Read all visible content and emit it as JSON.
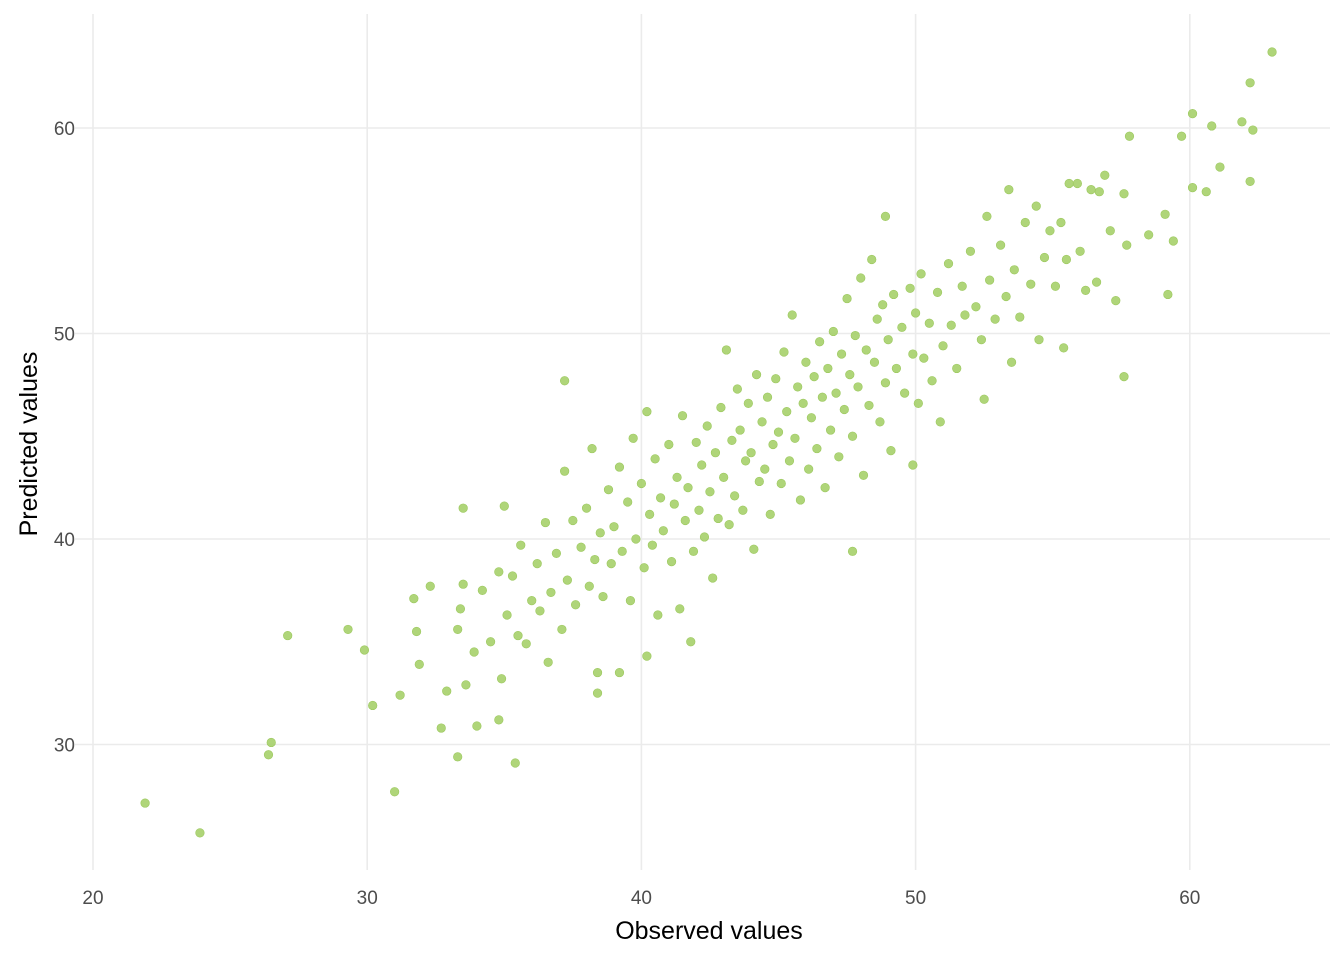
{
  "chart_data": {
    "type": "scatter",
    "title": "",
    "xlabel": "Observed values",
    "ylabel": "Predicted values",
    "xlim": [
      19.9,
      65
    ],
    "ylim": [
      24.3,
      65.5
    ],
    "x_ticks": [
      20,
      30,
      40,
      50,
      60
    ],
    "y_ticks": [
      30,
      40,
      50,
      60
    ],
    "x_tick_labels": [
      "20",
      "30",
      "40",
      "50",
      "60"
    ],
    "y_tick_labels": [
      "30",
      "40",
      "50",
      "60"
    ],
    "grid": true,
    "point_color": "#a6d06a",
    "points": [
      [
        21.9,
        27.15
      ],
      [
        23.9,
        25.7
      ],
      [
        26.4,
        29.5
      ],
      [
        26.5,
        30.1
      ],
      [
        27.1,
        35.3
      ],
      [
        29.3,
        35.6
      ],
      [
        29.9,
        34.6
      ],
      [
        30.2,
        31.9
      ],
      [
        31.0,
        27.7
      ],
      [
        31.2,
        32.4
      ],
      [
        31.7,
        37.1
      ],
      [
        31.8,
        35.5
      ],
      [
        31.9,
        33.9
      ],
      [
        32.3,
        37.7
      ],
      [
        32.7,
        30.8
      ],
      [
        32.9,
        32.6
      ],
      [
        33.3,
        35.6
      ],
      [
        33.3,
        29.4
      ],
      [
        33.5,
        41.5
      ],
      [
        33.5,
        37.8
      ],
      [
        33.6,
        32.9
      ],
      [
        34.0,
        30.9
      ],
      [
        34.8,
        31.2
      ],
      [
        35.4,
        29.1
      ],
      [
        35.0,
        41.6
      ],
      [
        37.2,
        47.7
      ],
      [
        38.4,
        32.5
      ],
      [
        38.4,
        33.5
      ],
      [
        39.2,
        33.5
      ],
      [
        40.2,
        34.3
      ],
      [
        41.8,
        35.0
      ],
      [
        47.7,
        39.4
      ],
      [
        48.9,
        55.7
      ],
      [
        57.6,
        47.9
      ],
      [
        59.2,
        51.9
      ],
      [
        57.8,
        59.6
      ],
      [
        59.7,
        59.6
      ],
      [
        60.1,
        60.7
      ],
      [
        60.8,
        60.1
      ],
      [
        62.2,
        62.2
      ],
      [
        63.0,
        63.7
      ],
      [
        61.9,
        60.3
      ],
      [
        62.3,
        59.9
      ],
      [
        62.2,
        57.4
      ],
      [
        61.1,
        58.1
      ],
      [
        60.6,
        56.9
      ],
      [
        60.1,
        57.1
      ],
      [
        59.4,
        54.5
      ],
      [
        59.1,
        55.8
      ],
      [
        58.5,
        54.8
      ],
      [
        55.4,
        49.3
      ],
      [
        53.5,
        48.6
      ],
      [
        52.5,
        46.8
      ],
      [
        50.9,
        45.7
      ],
      [
        49.9,
        43.6
      ],
      [
        33.4,
        36.6
      ],
      [
        33.9,
        34.5
      ],
      [
        34.2,
        37.5
      ],
      [
        34.5,
        35.0
      ],
      [
        34.8,
        38.4
      ],
      [
        34.9,
        33.2
      ],
      [
        35.1,
        36.3
      ],
      [
        35.3,
        38.2
      ],
      [
        35.5,
        35.3
      ],
      [
        35.6,
        39.7
      ],
      [
        35.8,
        34.9
      ],
      [
        36.0,
        37.0
      ],
      [
        36.2,
        38.8
      ],
      [
        36.3,
        36.5
      ],
      [
        36.5,
        40.8
      ],
      [
        36.6,
        34.0
      ],
      [
        36.7,
        37.4
      ],
      [
        36.9,
        39.3
      ],
      [
        37.1,
        35.6
      ],
      [
        37.2,
        43.3
      ],
      [
        37.3,
        38.0
      ],
      [
        37.5,
        40.9
      ],
      [
        37.6,
        36.8
      ],
      [
        37.8,
        39.6
      ],
      [
        38.0,
        41.5
      ],
      [
        38.1,
        37.7
      ],
      [
        38.2,
        44.4
      ],
      [
        38.3,
        39.0
      ],
      [
        38.5,
        40.3
      ],
      [
        38.6,
        37.2
      ],
      [
        38.8,
        42.4
      ],
      [
        38.9,
        38.8
      ],
      [
        39.0,
        40.6
      ],
      [
        39.2,
        43.5
      ],
      [
        39.3,
        39.4
      ],
      [
        39.5,
        41.8
      ],
      [
        39.6,
        37.0
      ],
      [
        39.7,
        44.9
      ],
      [
        39.8,
        40.0
      ],
      [
        40.0,
        42.7
      ],
      [
        40.1,
        38.6
      ],
      [
        40.2,
        46.2
      ],
      [
        40.3,
        41.2
      ],
      [
        40.4,
        39.7
      ],
      [
        40.5,
        43.9
      ],
      [
        40.6,
        36.3
      ],
      [
        40.7,
        42.0
      ],
      [
        40.8,
        40.4
      ],
      [
        41.0,
        44.6
      ],
      [
        41.1,
        38.9
      ],
      [
        41.2,
        41.7
      ],
      [
        41.3,
        43.0
      ],
      [
        41.4,
        36.6
      ],
      [
        41.5,
        46.0
      ],
      [
        41.6,
        40.9
      ],
      [
        41.7,
        42.5
      ],
      [
        41.9,
        39.4
      ],
      [
        42.0,
        44.7
      ],
      [
        42.1,
        41.4
      ],
      [
        42.2,
        43.6
      ],
      [
        42.3,
        40.1
      ],
      [
        42.4,
        45.5
      ],
      [
        42.5,
        42.3
      ],
      [
        42.6,
        38.1
      ],
      [
        42.7,
        44.2
      ],
      [
        42.8,
        41.0
      ],
      [
        42.9,
        46.4
      ],
      [
        43.0,
        43.0
      ],
      [
        43.1,
        49.2
      ],
      [
        43.2,
        40.7
      ],
      [
        43.3,
        44.8
      ],
      [
        43.4,
        42.1
      ],
      [
        43.5,
        47.3
      ],
      [
        43.6,
        45.3
      ],
      [
        43.7,
        41.4
      ],
      [
        43.8,
        43.8
      ],
      [
        43.9,
        46.6
      ],
      [
        44.0,
        44.2
      ],
      [
        44.1,
        39.5
      ],
      [
        44.2,
        48.0
      ],
      [
        44.3,
        42.8
      ],
      [
        44.4,
        45.7
      ],
      [
        44.5,
        43.4
      ],
      [
        44.6,
        46.9
      ],
      [
        44.7,
        41.2
      ],
      [
        44.8,
        44.6
      ],
      [
        44.9,
        47.8
      ],
      [
        45.0,
        45.2
      ],
      [
        45.1,
        42.7
      ],
      [
        45.2,
        49.1
      ],
      [
        45.3,
        46.2
      ],
      [
        45.4,
        43.8
      ],
      [
        45.5,
        50.9
      ],
      [
        45.6,
        44.9
      ],
      [
        45.7,
        47.4
      ],
      [
        45.8,
        41.9
      ],
      [
        45.9,
        46.6
      ],
      [
        46.0,
        48.6
      ],
      [
        46.1,
        43.4
      ],
      [
        46.2,
        45.9
      ],
      [
        46.3,
        47.9
      ],
      [
        46.4,
        44.4
      ],
      [
        46.5,
        49.6
      ],
      [
        46.6,
        46.9
      ],
      [
        46.7,
        42.5
      ],
      [
        46.8,
        48.3
      ],
      [
        46.9,
        45.3
      ],
      [
        47.0,
        50.1
      ],
      [
        47.1,
        47.1
      ],
      [
        47.2,
        44.0
      ],
      [
        47.3,
        49.0
      ],
      [
        47.4,
        46.3
      ],
      [
        47.5,
        51.7
      ],
      [
        47.6,
        48.0
      ],
      [
        47.7,
        45.0
      ],
      [
        47.8,
        49.9
      ],
      [
        47.9,
        47.4
      ],
      [
        48.0,
        52.7
      ],
      [
        48.1,
        43.1
      ],
      [
        48.2,
        49.2
      ],
      [
        48.3,
        46.5
      ],
      [
        48.4,
        53.6
      ],
      [
        48.5,
        48.6
      ],
      [
        48.6,
        50.7
      ],
      [
        48.7,
        45.7
      ],
      [
        48.8,
        51.4
      ],
      [
        48.9,
        47.6
      ],
      [
        49.0,
        49.7
      ],
      [
        49.1,
        44.3
      ],
      [
        49.2,
        51.9
      ],
      [
        49.3,
        48.3
      ],
      [
        49.5,
        50.3
      ],
      [
        49.6,
        47.1
      ],
      [
        49.8,
        52.2
      ],
      [
        49.9,
        49.0
      ],
      [
        50.0,
        51.0
      ],
      [
        50.1,
        46.6
      ],
      [
        50.2,
        52.9
      ],
      [
        50.3,
        48.8
      ],
      [
        50.5,
        50.5
      ],
      [
        50.6,
        47.7
      ],
      [
        50.8,
        52.0
      ],
      [
        51.0,
        49.4
      ],
      [
        51.2,
        53.4
      ],
      [
        51.3,
        50.4
      ],
      [
        51.5,
        48.3
      ],
      [
        51.7,
        52.3
      ],
      [
        51.8,
        50.9
      ],
      [
        52.0,
        54.0
      ],
      [
        52.2,
        51.3
      ],
      [
        52.4,
        49.7
      ],
      [
        52.6,
        55.7
      ],
      [
        52.7,
        52.6
      ],
      [
        52.9,
        50.7
      ],
      [
        53.1,
        54.3
      ],
      [
        53.3,
        51.8
      ],
      [
        53.4,
        57.0
      ],
      [
        53.6,
        53.1
      ],
      [
        53.8,
        50.8
      ],
      [
        54.0,
        55.4
      ],
      [
        54.2,
        52.4
      ],
      [
        54.4,
        56.2
      ],
      [
        54.5,
        49.7
      ],
      [
        54.7,
        53.7
      ],
      [
        54.9,
        55.0
      ],
      [
        55.1,
        52.3
      ],
      [
        55.3,
        55.4
      ],
      [
        55.5,
        53.6
      ],
      [
        55.6,
        57.3
      ],
      [
        56.0,
        54.0
      ],
      [
        56.2,
        52.1
      ],
      [
        56.4,
        57.0
      ],
      [
        56.6,
        52.5
      ],
      [
        56.9,
        57.7
      ],
      [
        57.1,
        55.0
      ],
      [
        57.3,
        51.6
      ],
      [
        57.6,
        56.8
      ],
      [
        57.7,
        54.3
      ],
      [
        56.7,
        56.9
      ],
      [
        55.9,
        57.3
      ]
    ]
  }
}
